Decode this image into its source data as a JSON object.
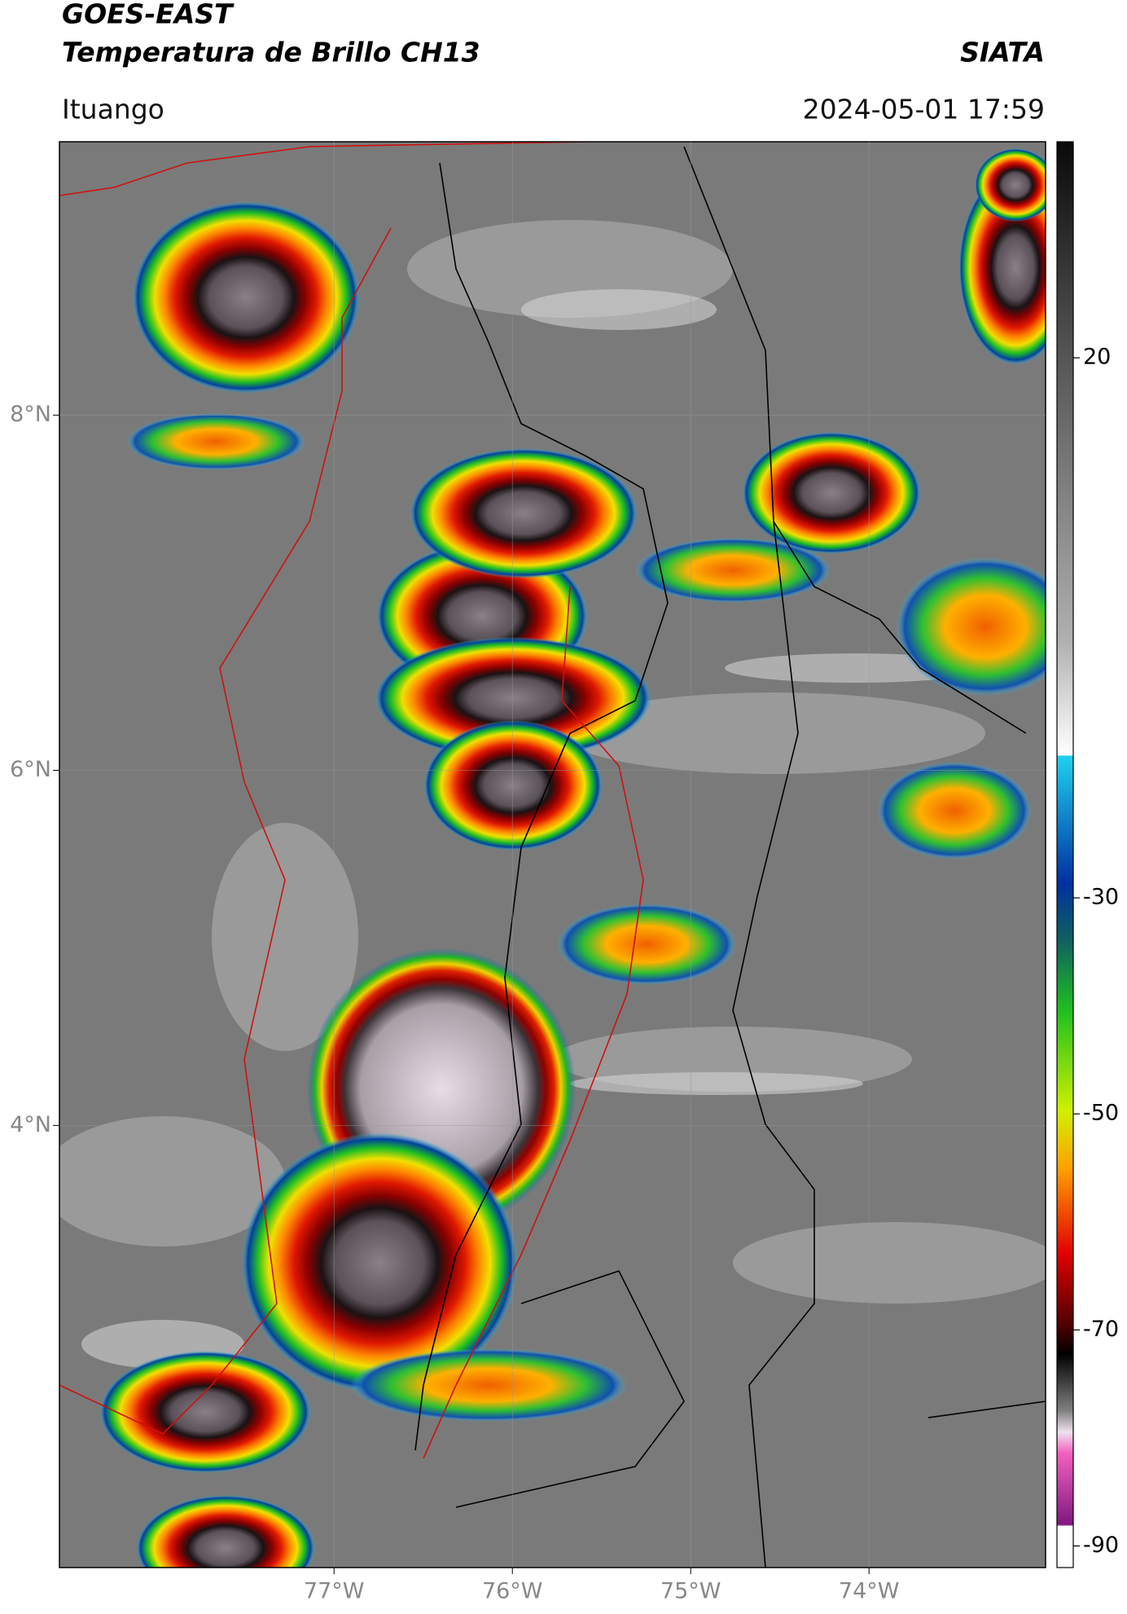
{
  "header": {
    "title": "GOES-EAST",
    "subtitle": "Temperatura de Brillo CH13",
    "agency": "SIATA",
    "location": "Ituango",
    "datetime": "2024-05-01 17:59"
  },
  "map": {
    "lon_range": [
      -78.54,
      -73.01
    ],
    "lat_range": [
      1.51,
      9.54
    ],
    "lon_ticks": [
      {
        "value": -77,
        "label": "77°W"
      },
      {
        "value": -76,
        "label": "76°W"
      },
      {
        "value": -75,
        "label": "75°W"
      },
      {
        "value": -74,
        "label": "74°W"
      }
    ],
    "lat_ticks": [
      {
        "value": 8,
        "label": "8°N"
      },
      {
        "value": 6,
        "label": "6°N"
      },
      {
        "value": 4,
        "label": "4°N"
      }
    ]
  },
  "colorbar": {
    "range": [
      -92,
      40
    ],
    "ticks": [
      20,
      -30,
      -50,
      -70,
      -90
    ]
  }
}
